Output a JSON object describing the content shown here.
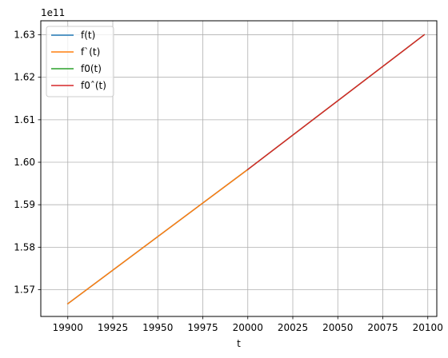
{
  "chart_data": {
    "type": "line",
    "xlabel": "t",
    "ylabel": "",
    "y_offset_label": "1e11",
    "xlim": [
      19885,
      20105
    ],
    "ylim": [
      156370000000.0,
      163330000000.0
    ],
    "x_ticks": [
      19900,
      19925,
      19950,
      19975,
      20000,
      20025,
      20050,
      20075,
      20100
    ],
    "x_tick_labels": [
      "19900",
      "19925",
      "19950",
      "19975",
      "20000",
      "20025",
      "20050",
      "20075",
      "20100"
    ],
    "y_ticks": [
      157000000000.0,
      158000000000.0,
      159000000000.0,
      160000000000.0,
      161000000000.0,
      162000000000.0,
      163000000000.0
    ],
    "y_tick_labels": [
      "1.57",
      "1.58",
      "1.59",
      "1.60",
      "1.61",
      "1.62",
      "1.63"
    ],
    "grid": true,
    "legend_position": "top-left",
    "series": [
      {
        "name": "f(t)",
        "color": "#1f77b4",
        "x": [
          19900,
          20000
        ],
        "y": [
          156670000000.0,
          159830000000.0
        ]
      },
      {
        "name": "f`(t)",
        "color": "#ff7f0e",
        "x": [
          19900,
          20000
        ],
        "y": [
          156670000000.0,
          159830000000.0
        ]
      },
      {
        "name": "f0(t)",
        "color": "#2ca02c",
        "x": [
          20000,
          20098
        ],
        "y": [
          159830000000.0,
          163000000000.0
        ]
      },
      {
        "name": "f0ˆ(t)",
        "color": "#d62728",
        "x": [
          20000,
          20098
        ],
        "y": [
          159830000000.0,
          163000000000.0
        ]
      }
    ]
  }
}
